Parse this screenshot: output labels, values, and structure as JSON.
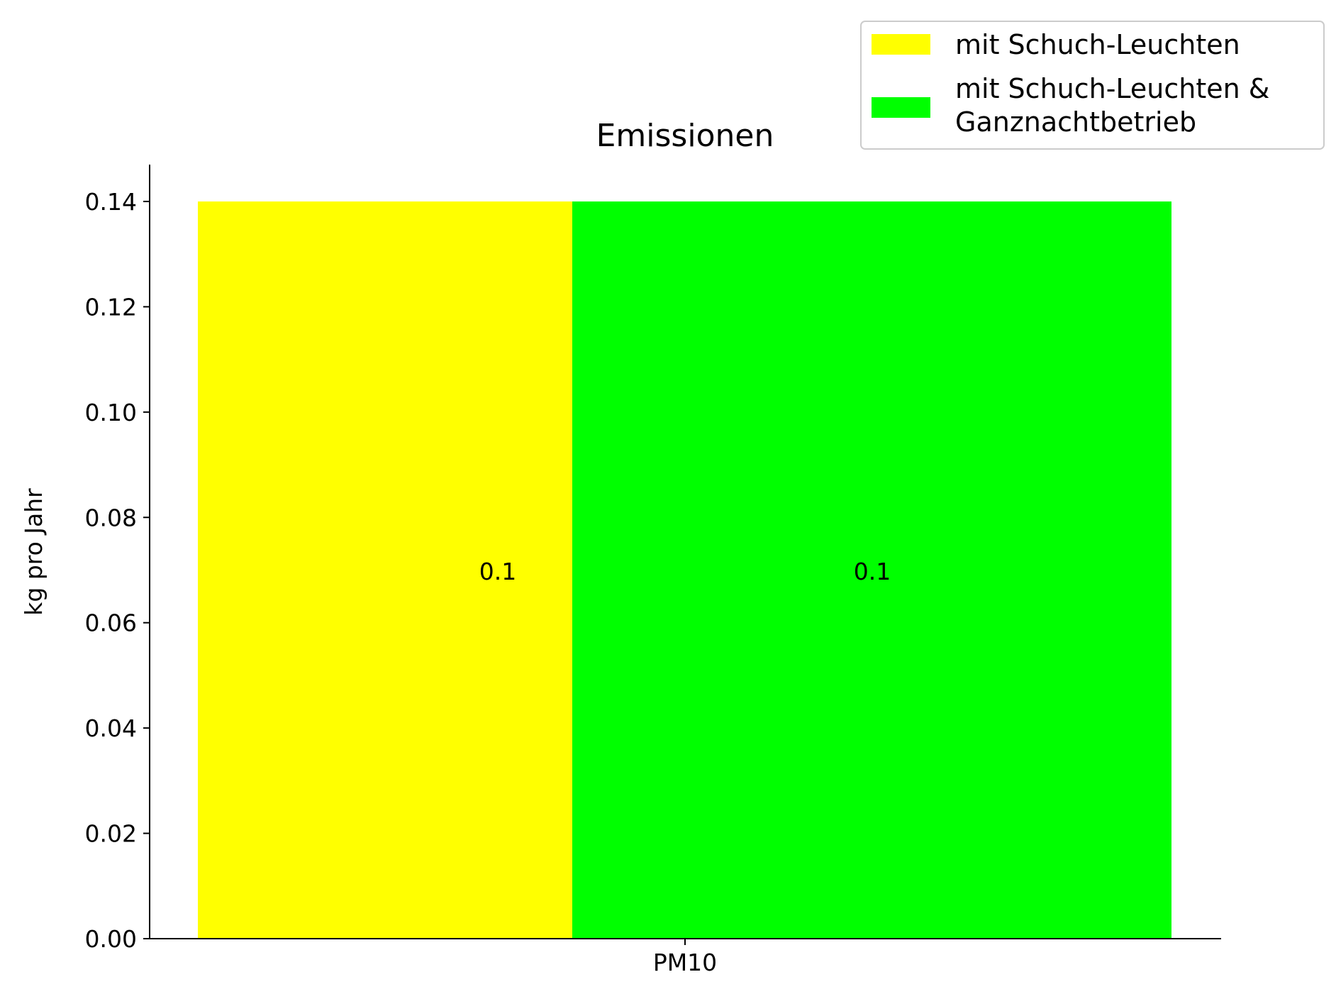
{
  "chart_data": {
    "type": "bar",
    "title": "Emissionen",
    "xlabel": "",
    "ylabel": "kg pro Jahr",
    "categories": [
      "PM10"
    ],
    "ylim": [
      0,
      0.147
    ],
    "yticks": [
      "0.00",
      "0.02",
      "0.04",
      "0.06",
      "0.08",
      "0.10",
      "0.12",
      "0.14"
    ],
    "series": [
      {
        "name": "mit Schuch-Leuchten",
        "values": [
          0.14
        ],
        "label": "0.1",
        "color": "#ffff00"
      },
      {
        "name": "mit Schuch-Leuchten & Ganznachtbetrieb",
        "values": [
          0.14
        ],
        "label": "0.1",
        "color": "#00ff00"
      }
    ],
    "legend": {
      "placement": "top-right",
      "entries": [
        {
          "lines": [
            "mit Schuch-Leuchten"
          ],
          "color": "#ffff00"
        },
        {
          "lines": [
            "mit Schuch-Leuchten &",
            "Ganznachtbetrieb"
          ],
          "color": "#00ff00"
        }
      ]
    },
    "grid": false
  }
}
